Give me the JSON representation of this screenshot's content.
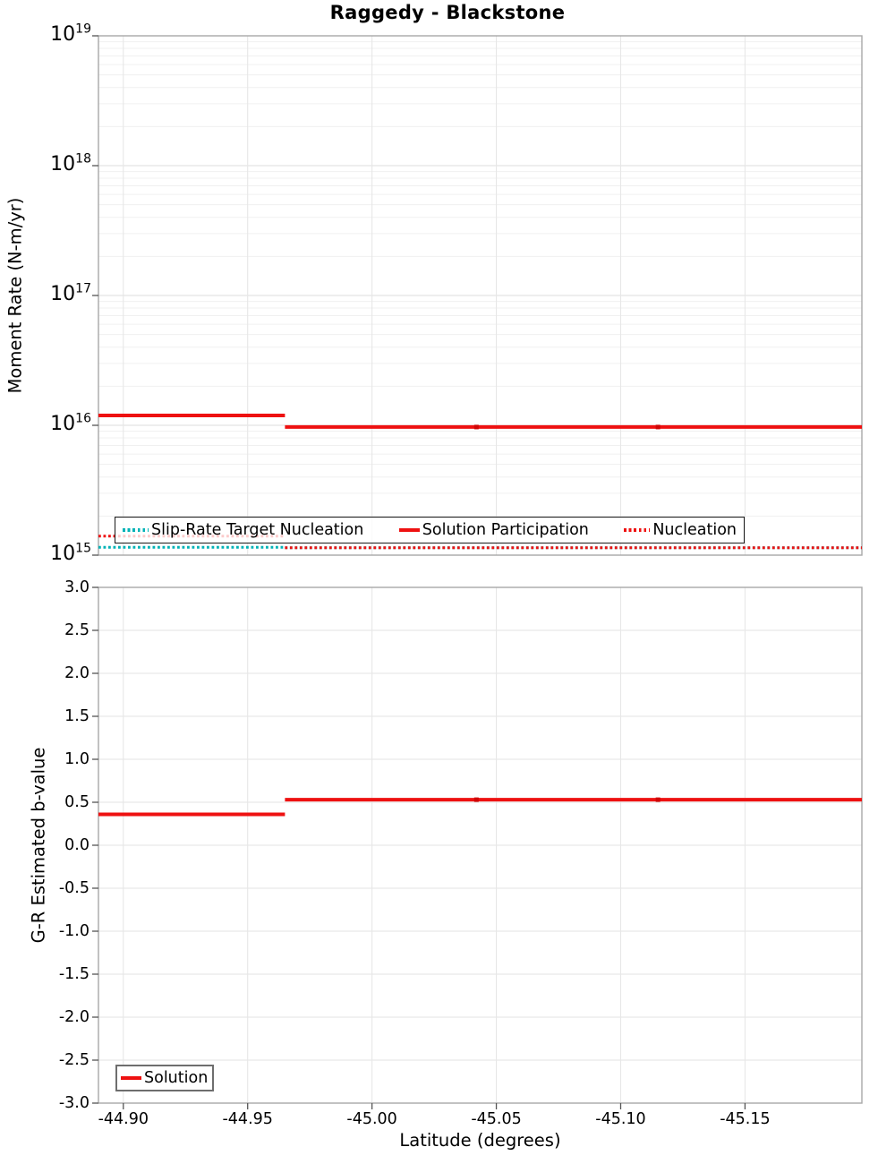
{
  "figure": {
    "title": "Raggedy - Blackstone",
    "background": "#ffffff",
    "accent_red": "#ee1111",
    "accent_teal": "#00b2b6"
  },
  "chart_data": [
    {
      "type": "line",
      "title": "Raggedy - Blackstone",
      "ylabel": "Moment Rate (N-m/yr)",
      "yscale": "log",
      "ylim_exponents": [
        15,
        19
      ],
      "ytick_exponents": [
        19,
        18,
        17,
        16,
        15
      ],
      "xlim": [
        -44.89,
        -45.197
      ],
      "grid": "major+minor horizontal, vertical at x ticks",
      "legend_position": "inside bottom, horizontal box",
      "series": [
        {
          "name": "Slip-Rate Target Nucleation",
          "color": "#00b2b6",
          "style": "dotted",
          "segments": [
            {
              "x0": -44.89,
              "x1": -44.965,
              "y": 1150000000000000.0
            },
            {
              "x0": -44.965,
              "x1": -45.197,
              "y": 1140000000000000.0
            }
          ]
        },
        {
          "name": "Nucleation",
          "color": "#ee1111",
          "style": "dotted",
          "segments": [
            {
              "x0": -44.89,
              "x1": -44.965,
              "y": 1400000000000000.0
            },
            {
              "x0": -44.965,
              "x1": -45.197,
              "y": 1140000000000000.0
            }
          ]
        },
        {
          "name": "Solution Participation",
          "color": "#ee1111",
          "style": "solid",
          "segments": [
            {
              "x0": -44.89,
              "x1": -44.965,
              "y": 1.19e+16
            },
            {
              "x0": -44.965,
              "x1": -45.197,
              "y": 9700000000000000.0
            }
          ],
          "marker_x": [
            -45.042,
            -45.115
          ],
          "marker_color": "#cf0606"
        }
      ],
      "legend_entries": [
        {
          "label": "Slip-Rate Target Nucleation",
          "swatch": "dotted",
          "color": "#00b2b6"
        },
        {
          "label": "Solution Participation",
          "swatch": "solid",
          "color": "#ee1111"
        },
        {
          "label": "Nucleation",
          "swatch": "dotted",
          "color": "#ee1111"
        }
      ]
    },
    {
      "type": "line",
      "ylabel": "G-R Estimated b-value",
      "xlabel": "Latitude (degrees)",
      "ylim": [
        -3.0,
        3.0
      ],
      "ytick_labels": [
        "3.0",
        "2.5",
        "2.0",
        "1.5",
        "1.0",
        "0.5",
        "0.0",
        "-0.5",
        "-1.0",
        "-1.5",
        "-2.0",
        "-2.5",
        "-3.0"
      ],
      "xtick_values": [
        -44.9,
        -44.95,
        -45.0,
        -45.05,
        -45.1,
        -45.15
      ],
      "xtick_labels": [
        "-44.90",
        "-44.95",
        "-45.00",
        "-45.05",
        "-45.10",
        "-45.15"
      ],
      "xlim": [
        -44.89,
        -45.197
      ],
      "grid": "horizontal at 0.5 steps, vertical at x ticks",
      "series": [
        {
          "name": "Solution",
          "color": "#ee1111",
          "style": "solid",
          "segments": [
            {
              "x0": -44.89,
              "x1": -44.965,
              "y": 0.36
            },
            {
              "x0": -44.965,
              "x1": -45.197,
              "y": 0.53
            }
          ],
          "marker_x": [
            -45.042,
            -45.115
          ],
          "marker_color": "#cf0606"
        }
      ],
      "legend_entries": [
        {
          "label": "Solution",
          "swatch": "solid",
          "color": "#ee1111"
        }
      ]
    }
  ]
}
